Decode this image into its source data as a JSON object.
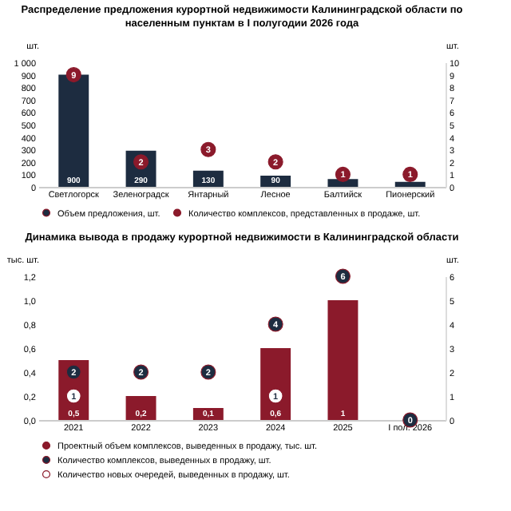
{
  "chart_data": [
    {
      "type": "bar",
      "title": "Распределение предложения курортной недвижимости Калининградской области по населенным пунктам в I полугодии 2026 года",
      "ylabel": "шт.",
      "y2label": "шт.",
      "categories": [
        "Светлогорск",
        "Зеленоградск",
        "Янтарный",
        "Лесное",
        "Балтийск",
        "Пионерский"
      ],
      "series": [
        {
          "name": "Объем предложения, шт.",
          "type": "bar",
          "color": "#1d2c40",
          "values": [
            900,
            290,
            130,
            90,
            62,
            40
          ],
          "value_labels": [
            "900",
            "290",
            "130",
            "90",
            null,
            null
          ]
        },
        {
          "name": "Количество комплексов, представленных в продаже, шт.",
          "type": "scatter",
          "axis": "y2",
          "color": "#8b1a2b",
          "values": [
            9,
            2,
            3,
            2,
            1,
            1
          ]
        }
      ],
      "ylim": [
        0,
        1000
      ],
      "yticks": [
        0,
        100,
        200,
        300,
        400,
        500,
        600,
        700,
        800,
        900,
        {
          "value": 1000,
          "label": "1 000"
        }
      ],
      "y2lim": [
        0,
        10
      ],
      "y2ticks": [
        0,
        1,
        2,
        3,
        4,
        5,
        6,
        7,
        8,
        9,
        10
      ],
      "data_labels": true,
      "legend": "bottom",
      "grid": false,
      "marker": "circle"
    },
    {
      "type": "bar",
      "title": "Динамика вывода в продажу курортной недвижимости в Калининградской области",
      "ylabel": "тыс. шт.",
      "y2label": "шт.",
      "categories": [
        "2021",
        "2022",
        "2023",
        "2024",
        "2025",
        "I пол. 2026"
      ],
      "series": [
        {
          "name": "Проектный объем комплексов, выведенных в продажу, тыс. шт.",
          "type": "bar",
          "color": "#8b1a2b",
          "values": [
            0.5,
            0.2,
            0.1,
            0.6,
            1,
            null
          ],
          "value_labels": [
            "0,5",
            "0,2",
            "0,1",
            "0,6",
            "1",
            null
          ]
        },
        {
          "name": "Количество комплексов, выведенных в продажу, шт.",
          "type": "scatter",
          "axis": "y2",
          "color": "#1d2c40",
          "values": [
            2,
            2,
            2,
            4,
            6,
            0
          ]
        },
        {
          "name": "Количество новых очередей, выведенных в продажу, шт.",
          "type": "scatter",
          "axis": "y2",
          "color": "#ffffff",
          "values": [
            1,
            null,
            null,
            1,
            null,
            null
          ]
        }
      ],
      "ylim": [
        0,
        1.2
      ],
      "yticks": [
        {
          "value": 0,
          "label": "0,0"
        },
        {
          "value": 0.2,
          "label": "0,2"
        },
        {
          "value": 0.4,
          "label": "0,4"
        },
        {
          "value": 0.6,
          "label": "0,6"
        },
        {
          "value": 0.8,
          "label": "0,8"
        },
        {
          "value": 1,
          "label": "1,0"
        },
        {
          "value": 1.2,
          "label": "1,2"
        }
      ],
      "y2lim": [
        0,
        6
      ],
      "y2ticks": [
        0,
        1,
        2,
        3,
        4,
        5,
        6
      ],
      "data_labels": true,
      "legend": "bottom",
      "grid": false,
      "marker": "circle"
    }
  ]
}
